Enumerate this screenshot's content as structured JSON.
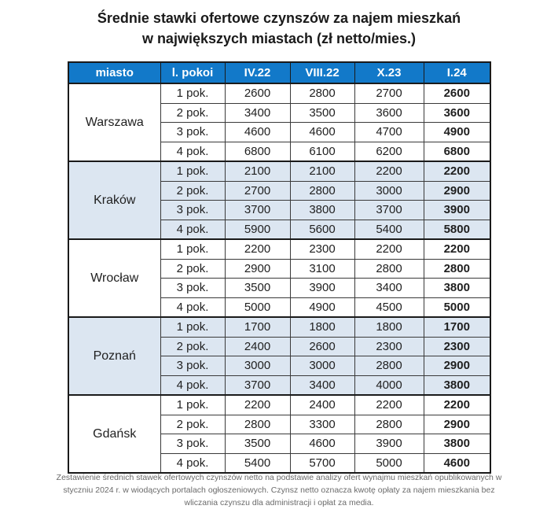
{
  "title": {
    "line1": "Średnie stawki ofertowe czynszów za najem mieszkań",
    "line2": "w największych miastach (zł netto/mies.)"
  },
  "chart_data": {
    "type": "table",
    "title": "Średnie stawki ofertowe czynszów za najem mieszkań w największych miastach (zł netto/mies.)",
    "columns": [
      "miasto",
      "l. pokoi",
      "IV.22",
      "VIII.22",
      "X.23",
      "I.24"
    ],
    "groups": [
      {
        "city": "Warszawa",
        "highlighted": false,
        "rows": [
          {
            "rooms": "1 pok.",
            "values": [
              2600,
              2800,
              2700,
              2600
            ]
          },
          {
            "rooms": "2 pok.",
            "values": [
              3400,
              3500,
              3600,
              3600
            ]
          },
          {
            "rooms": "3 pok.",
            "values": [
              4600,
              4600,
              4700,
              4900
            ]
          },
          {
            "rooms": "4 pok.",
            "values": [
              6800,
              6100,
              6200,
              6800
            ]
          }
        ]
      },
      {
        "city": "Kraków",
        "highlighted": true,
        "rows": [
          {
            "rooms": "1 pok.",
            "values": [
              2100,
              2100,
              2200,
              2200
            ]
          },
          {
            "rooms": "2 pok.",
            "values": [
              2700,
              2800,
              3000,
              2900
            ]
          },
          {
            "rooms": "3 pok.",
            "values": [
              3700,
              3800,
              3700,
              3900
            ]
          },
          {
            "rooms": "4 pok.",
            "values": [
              5900,
              5600,
              5400,
              5800
            ]
          }
        ]
      },
      {
        "city": "Wrocław",
        "highlighted": false,
        "rows": [
          {
            "rooms": "1 pok.",
            "values": [
              2200,
              2300,
              2200,
              2200
            ]
          },
          {
            "rooms": "2 pok.",
            "values": [
              2900,
              3100,
              2800,
              2800
            ]
          },
          {
            "rooms": "3 pok.",
            "values": [
              3500,
              3900,
              3400,
              3800
            ]
          },
          {
            "rooms": "4 pok.",
            "values": [
              5000,
              4900,
              4500,
              5000
            ]
          }
        ]
      },
      {
        "city": "Poznań",
        "highlighted": true,
        "rows": [
          {
            "rooms": "1 pok.",
            "values": [
              1700,
              1800,
              1800,
              1700
            ]
          },
          {
            "rooms": "2 pok.",
            "values": [
              2400,
              2600,
              2300,
              2300
            ]
          },
          {
            "rooms": "3 pok.",
            "values": [
              3000,
              3000,
              2800,
              2900
            ]
          },
          {
            "rooms": "4 pok.",
            "values": [
              3700,
              3400,
              4000,
              3800
            ]
          }
        ]
      },
      {
        "city": "Gdańsk",
        "highlighted": false,
        "rows": [
          {
            "rooms": "1 pok.",
            "values": [
              2200,
              2400,
              2200,
              2200
            ]
          },
          {
            "rooms": "2 pok.",
            "values": [
              2800,
              3300,
              2800,
              2900
            ]
          },
          {
            "rooms": "3 pok.",
            "values": [
              3500,
              4600,
              3900,
              3800
            ]
          },
          {
            "rooms": "4 pok.",
            "values": [
              5400,
              5700,
              5000,
              4600
            ]
          }
        ]
      }
    ]
  },
  "footer": {
    "text": "Zestawienie średnich stawek ofertowych czynszów netto na podstawie analizy ofert wynajmu mieszkań opublikowanych w styczniu 2024 r. w wiodących portalach ogłoszeniowych. Czynsz netto oznacza kwotę opłaty za najem mieszkania bez wliczania czynszu dla administracji i opłat za media."
  },
  "colors": {
    "header_bg": "#1279c9",
    "header_text": "#ffffff",
    "highlight_row_bg": "#dce6f1",
    "border": "#1a1a1a",
    "footer_text": "#6b6b6b"
  }
}
